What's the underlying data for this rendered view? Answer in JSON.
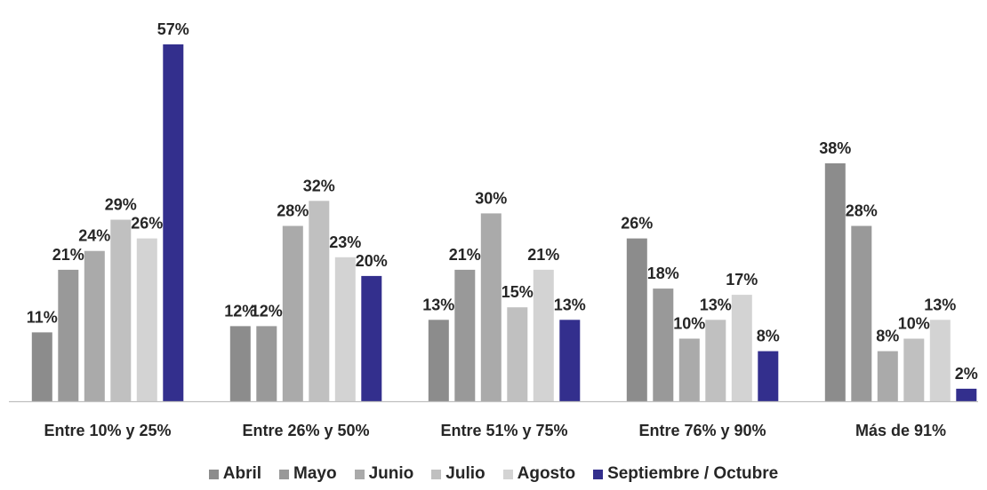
{
  "chart_data": {
    "type": "bar",
    "title": "",
    "xlabel": "",
    "ylabel": "",
    "categories": [
      "Entre 10% y 25%",
      "Entre 26% y 50%",
      "Entre 51% y 75%",
      "Entre 76% y 90%",
      "Más de 91%"
    ],
    "series": [
      {
        "name": "Abril",
        "color": "#8c8c8c",
        "values": [
          11,
          12,
          13,
          26,
          38
        ],
        "labels": [
          "11%",
          "12%",
          "13%",
          "26%",
          "38%"
        ]
      },
      {
        "name": "Mayo",
        "color": "#999999",
        "values": [
          21,
          12,
          21,
          18,
          28
        ],
        "labels": [
          "21%",
          "12%",
          "21%",
          "18%",
          "28%"
        ]
      },
      {
        "name": "Junio",
        "color": "#aaaaaa",
        "values": [
          24,
          28,
          30,
          10,
          8
        ],
        "labels": [
          "24%",
          "28%",
          "30%",
          "10%",
          "8%"
        ]
      },
      {
        "name": "Julio",
        "color": "#c0c0c0",
        "values": [
          29,
          32,
          15,
          13,
          10
        ],
        "labels": [
          "29%",
          "32%",
          "15%",
          "13%",
          "10%"
        ]
      },
      {
        "name": "Agosto",
        "color": "#d3d3d3",
        "values": [
          26,
          23,
          21,
          17,
          13
        ],
        "labels": [
          "26%",
          "23%",
          "21%",
          "17%",
          "13%"
        ]
      },
      {
        "name": "Septiembre / Octubre",
        "color": "#332f8d",
        "values": [
          57,
          20,
          13,
          8,
          2
        ],
        "labels": [
          "57%",
          "20%",
          "13%",
          "8%",
          "2%"
        ]
      }
    ],
    "ylim": [
      0,
      57
    ],
    "grid": false,
    "legend_position": "bottom"
  }
}
